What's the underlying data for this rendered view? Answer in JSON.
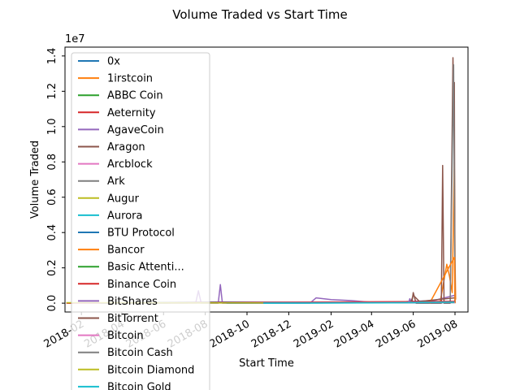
{
  "chart_data": {
    "type": "line",
    "title": "Volume Traded vs Start Time",
    "xlabel": "Start Time",
    "ylabel": "Volume Traded",
    "y_multiplier": "1e7",
    "xlim": [
      "2018-01-08",
      "2019-08-20"
    ],
    "ylim": [
      -500000,
      14500000
    ],
    "x_ticks": [
      "2018-02",
      "2018-04",
      "2018-06",
      "2018-08",
      "2018-10",
      "2018-12",
      "2019-02",
      "2019-04",
      "2019-06",
      "2019-08"
    ],
    "y_ticks": [
      {
        "value": 0,
        "label": "0.0"
      },
      {
        "value": 2000000,
        "label": "0.2"
      },
      {
        "value": 4000000,
        "label": "0.4"
      },
      {
        "value": 6000000,
        "label": "0.6"
      },
      {
        "value": 8000000,
        "label": "0.8"
      },
      {
        "value": 10000000,
        "label": "1.0"
      },
      {
        "value": 12000000,
        "label": "1.2"
      },
      {
        "value": 14000000,
        "label": "1.4"
      }
    ],
    "legend_position": "upper-left",
    "series": [
      {
        "name": "0x",
        "color": "#1f77b4",
        "points": [
          [
            "2018-01-15",
            5000
          ],
          [
            "2018-08-25",
            60000
          ],
          [
            "2019-07-28",
            40000
          ],
          [
            "2019-08-02",
            120000
          ]
        ]
      },
      {
        "name": "1irstcoin",
        "color": "#ff7f0e",
        "points": [
          [
            "2019-07-10",
            0
          ],
          [
            "2019-07-20",
            2200000
          ],
          [
            "2019-07-24",
            1500000
          ],
          [
            "2019-07-28",
            600000
          ],
          [
            "2019-07-31",
            8000000
          ],
          [
            "2019-08-01",
            2600000
          ],
          [
            "2019-08-02",
            200000
          ]
        ]
      },
      {
        "name": "ABBC Coin",
        "color": "#2ca02c",
        "points": [
          [
            "2018-01-20",
            0
          ],
          [
            "2019-07-30",
            50000
          ],
          [
            "2019-08-02",
            80000
          ]
        ]
      },
      {
        "name": "Aeternity",
        "color": "#d62728",
        "points": [
          [
            "2018-01-25",
            0
          ],
          [
            "2019-07-29",
            60000
          ],
          [
            "2019-08-01",
            90000
          ]
        ]
      },
      {
        "name": "AgaveCoin",
        "color": "#9467bd",
        "points": [
          [
            "2018-07-18",
            0
          ],
          [
            "2018-07-22",
            700000
          ],
          [
            "2018-07-26",
            0
          ],
          [
            "2018-08-20",
            0
          ],
          [
            "2018-08-23",
            1050000
          ],
          [
            "2018-08-26",
            0
          ],
          [
            "2019-01-01",
            0
          ],
          [
            "2019-01-10",
            300000
          ],
          [
            "2019-02-01",
            200000
          ],
          [
            "2019-03-01",
            150000
          ],
          [
            "2019-04-01",
            50000
          ],
          [
            "2019-05-01",
            30000
          ],
          [
            "2019-05-25",
            100000
          ],
          [
            "2019-07-01",
            150000
          ],
          [
            "2019-08-01",
            450000
          ]
        ]
      },
      {
        "name": "Aragon",
        "color": "#8c564b",
        "points": [
          [
            "2019-05-30",
            0
          ],
          [
            "2019-06-01",
            600000
          ],
          [
            "2019-06-05",
            0
          ],
          [
            "2019-07-12",
            0
          ],
          [
            "2019-07-14",
            7800000
          ],
          [
            "2019-07-16",
            0
          ],
          [
            "2019-07-25",
            0
          ],
          [
            "2019-07-29",
            13900000
          ],
          [
            "2019-07-30",
            11500000
          ],
          [
            "2019-07-31",
            12500000
          ],
          [
            "2019-08-01",
            0
          ]
        ]
      },
      {
        "name": "Arcblock",
        "color": "#e377c2",
        "points": [
          [
            "2018-06-01",
            0
          ],
          [
            "2019-07-31",
            100000
          ]
        ]
      },
      {
        "name": "Ark",
        "color": "#7f7f7f",
        "points": [
          [
            "2019-07-25",
            0
          ],
          [
            "2019-07-30",
            13500000
          ],
          [
            "2019-08-01",
            0
          ]
        ]
      },
      {
        "name": "Augur",
        "color": "#bcbd22",
        "points": [
          [
            "2018-01-12",
            0
          ],
          [
            "2018-10-25",
            20000
          ],
          [
            "2019-08-01",
            50000
          ]
        ]
      },
      {
        "name": "Aurora",
        "color": "#17becf",
        "points": [
          [
            "2018-10-25",
            0
          ],
          [
            "2019-06-20",
            30000
          ],
          [
            "2019-07-31",
            80000
          ]
        ]
      },
      {
        "name": "BTU Protocol",
        "color": "#1f77b4",
        "points": [
          [
            "2018-09-01",
            0
          ],
          [
            "2019-07-31",
            30000
          ]
        ]
      },
      {
        "name": "Bancor",
        "color": "#ff7f0e",
        "points": [
          [
            "2019-06-25",
            0
          ],
          [
            "2019-07-31",
            2600000
          ],
          [
            "2019-08-01",
            0
          ]
        ]
      },
      {
        "name": "Basic Attenti...",
        "color": "#2ca02c",
        "points": [
          [
            "2018-02-01",
            0
          ],
          [
            "2019-07-31",
            60000
          ]
        ]
      },
      {
        "name": "Binance Coin",
        "color": "#d62728",
        "points": [
          [
            "2018-01-10",
            0
          ],
          [
            "2019-08-01",
            100000
          ]
        ]
      },
      {
        "name": "BitShares",
        "color": "#9467bd",
        "points": [
          [
            "2019-05-25",
            0
          ],
          [
            "2019-05-27",
            250000
          ],
          [
            "2019-05-30",
            0
          ]
        ]
      },
      {
        "name": "BitTorrent",
        "color": "#8c564b",
        "points": [
          [
            "2019-05-28",
            0
          ],
          [
            "2019-06-01",
            450000
          ],
          [
            "2019-06-10",
            100000
          ],
          [
            "2019-07-31",
            300000
          ]
        ]
      },
      {
        "name": "Bitcoin",
        "color": "#e377c2",
        "points": [
          [
            "2018-01-20",
            0
          ],
          [
            "2019-08-01",
            50000
          ]
        ]
      },
      {
        "name": "Bitcoin Cash",
        "color": "#7f7f7f",
        "points": [
          [
            "2018-03-01",
            0
          ],
          [
            "2019-07-31",
            40000
          ]
        ]
      },
      {
        "name": "Bitcoin Diamond",
        "color": "#bcbd22",
        "points": [
          [
            "2018-01-10",
            30000
          ],
          [
            "2018-08-01",
            20000
          ],
          [
            "2018-10-25",
            10000
          ]
        ]
      },
      {
        "name": "Bitcoin Gold",
        "color": "#17becf",
        "points": [
          [
            "2018-10-25",
            0
          ],
          [
            "2019-05-01",
            20000
          ],
          [
            "2019-07-31",
            60000
          ]
        ]
      }
    ]
  }
}
